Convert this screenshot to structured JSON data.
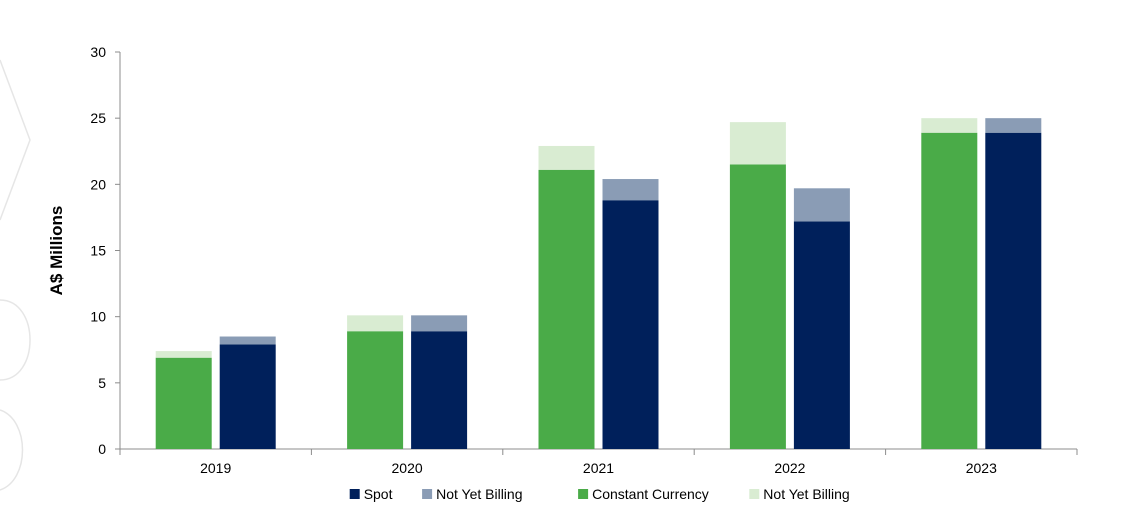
{
  "chart_data": {
    "type": "bar",
    "stacked": true,
    "grouped": true,
    "categories": [
      "2019",
      "2020",
      "2021",
      "2022",
      "2023"
    ],
    "ylabel": "A$ Millions",
    "ylim": [
      0,
      30
    ],
    "yticks": [
      0,
      5,
      10,
      15,
      20,
      25,
      30
    ],
    "grid": false,
    "legend_position": "bottom",
    "groups": [
      {
        "stack": "Constant Currency basis",
        "segments": [
          {
            "name": "Constant Currency",
            "color": "#4aab48",
            "values": [
              6.9,
              8.9,
              21.1,
              21.5,
              23.9
            ]
          },
          {
            "name": "Not Yet Billing",
            "color": "#d9ecd2",
            "values": [
              0.5,
              1.2,
              1.8,
              3.2,
              1.1
            ]
          }
        ]
      },
      {
        "stack": "Spot basis",
        "segments": [
          {
            "name": "Spot",
            "color": "#00205b",
            "values": [
              7.9,
              8.9,
              18.8,
              17.2,
              23.9
            ]
          },
          {
            "name": "Not Yet Billing",
            "color": "#8a9cb5",
            "values": [
              0.6,
              1.2,
              1.6,
              2.5,
              1.1
            ]
          }
        ]
      }
    ],
    "legend": [
      {
        "name": "Spot",
        "color": "#00205b"
      },
      {
        "name": "Not Yet Billing",
        "color": "#8a9cb5"
      },
      {
        "name": "Constant Currency",
        "color": "#4aab48"
      },
      {
        "name": "Not Yet Billing",
        "color": "#d9ecd2"
      }
    ]
  }
}
